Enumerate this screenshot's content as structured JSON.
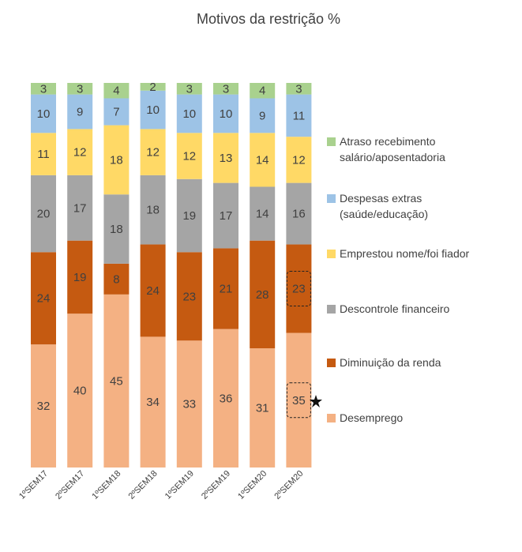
{
  "chart_data": {
    "type": "bar",
    "stacked": true,
    "title": "Motivos da restrição  %",
    "categories": [
      "1ºSEM17",
      "2ºSEM17",
      "1ºSEM18",
      "2ºSEM18",
      "1ºSEM19",
      "2ºSEM19",
      "1ºSEM20",
      "2ºSEM20"
    ],
    "series": [
      {
        "name": "Desemprego",
        "color": "#F4B183",
        "values": [
          32,
          40,
          45,
          34,
          33,
          36,
          31,
          35
        ]
      },
      {
        "name": "Diminuição da renda",
        "color": "#C55A11",
        "values": [
          24,
          19,
          8,
          24,
          23,
          21,
          28,
          23
        ]
      },
      {
        "name": "Descontrole financeiro",
        "color": "#A5A5A5",
        "values": [
          20,
          17,
          18,
          18,
          19,
          17,
          14,
          16
        ]
      },
      {
        "name": "Emprestou nome/foi fiador",
        "color": "#FFD966",
        "values": [
          11,
          12,
          18,
          12,
          12,
          13,
          14,
          12
        ]
      },
      {
        "name": "Despesas extras\n(saúde/educação)",
        "color": "#9DC3E6",
        "values": [
          10,
          9,
          7,
          10,
          10,
          10,
          9,
          11
        ]
      },
      {
        "name": "Atraso recebimento\nsalário/aposentadoria",
        "color": "#A9D18E",
        "values": [
          3,
          3,
          4,
          2,
          3,
          3,
          4,
          3
        ]
      }
    ],
    "legend_position": "right",
    "grid": false
  }
}
